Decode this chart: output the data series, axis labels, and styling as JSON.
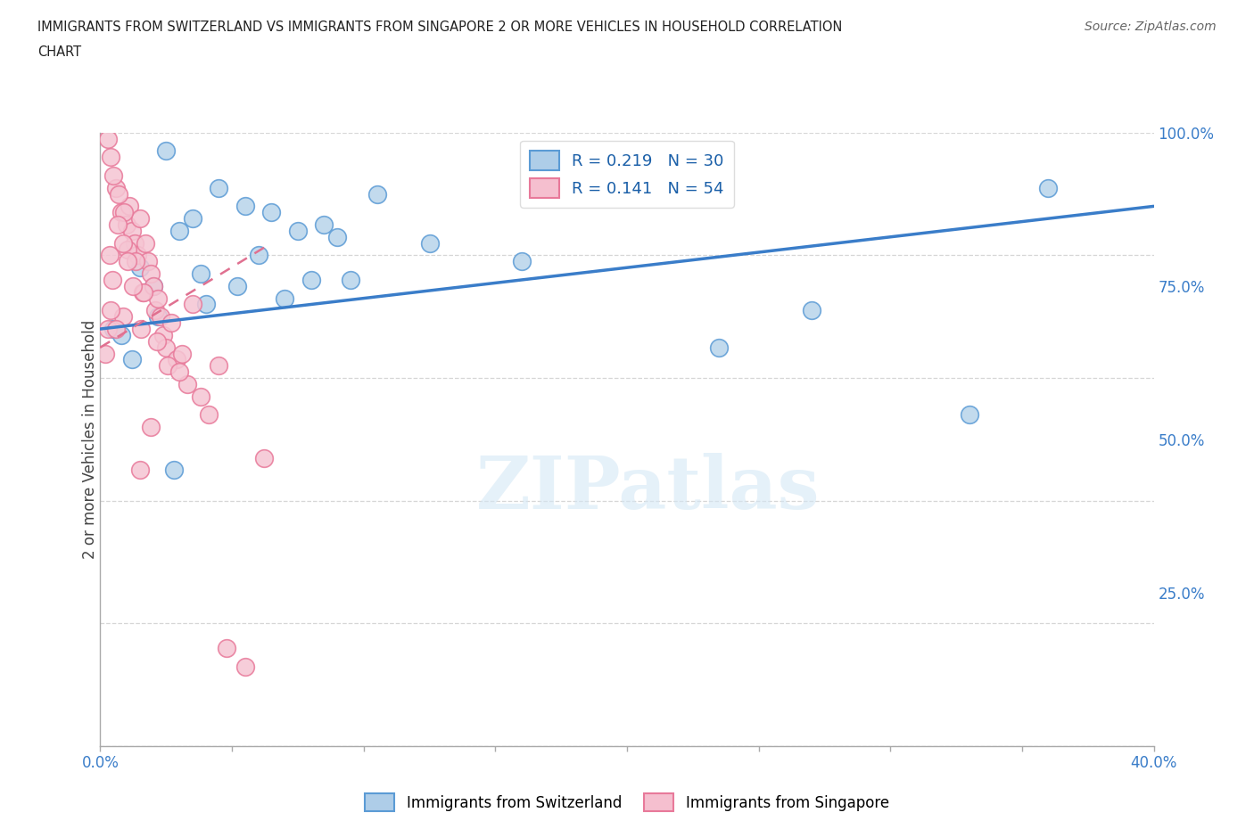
{
  "title_line1": "IMMIGRANTS FROM SWITZERLAND VS IMMIGRANTS FROM SINGAPORE 2 OR MORE VEHICLES IN HOUSEHOLD CORRELATION",
  "title_line2": "CHART",
  "source": "Source: ZipAtlas.com",
  "ylabel": "2 or more Vehicles in Household",
  "x_min": 0.0,
  "x_max": 40.0,
  "y_min": 0.0,
  "y_max": 100.0,
  "legend_blue_label_r": "R = 0.219",
  "legend_blue_label_n": "N = 30",
  "legend_pink_label_r": "R = 0.141",
  "legend_pink_label_n": "N = 54",
  "legend_blue_face": "#aecde8",
  "legend_pink_face": "#f5bfcf",
  "blue_edge_color": "#5b9bd5",
  "pink_edge_color": "#e8799a",
  "blue_scatter_color": "#b8d4ea",
  "pink_scatter_color": "#f5c5d3",
  "blue_line_color": "#3a7dc9",
  "pink_line_color": "#e07090",
  "grid_color": "#cccccc",
  "background_color": "#ffffff",
  "watermark": "ZIPatlas",
  "blue_scatter_x": [
    2.5,
    4.5,
    3.0,
    6.5,
    8.5,
    9.0,
    10.5,
    3.5,
    1.5,
    2.0,
    4.0,
    6.0,
    7.5,
    12.5,
    16.0,
    8.0,
    5.5,
    0.5,
    2.2,
    3.8,
    5.2,
    7.0,
    9.5,
    0.8,
    1.2,
    2.8,
    23.5,
    33.0,
    36.0,
    27.0
  ],
  "blue_scatter_y": [
    97,
    91,
    84,
    87,
    85,
    83,
    90,
    86,
    78,
    75,
    72,
    80,
    84,
    82,
    79,
    76,
    88,
    68,
    70,
    77,
    75,
    73,
    76,
    67,
    63,
    45,
    65,
    54,
    91,
    71
  ],
  "pink_scatter_x": [
    0.3,
    0.4,
    0.6,
    0.8,
    1.0,
    1.1,
    1.2,
    1.3,
    1.4,
    1.5,
    1.6,
    1.7,
    1.8,
    1.9,
    2.0,
    2.1,
    2.2,
    2.3,
    2.4,
    2.5,
    2.7,
    2.9,
    3.1,
    3.3,
    3.5,
    3.8,
    4.1,
    4.5,
    0.5,
    0.7,
    0.9,
    1.05,
    1.35,
    1.65,
    0.85,
    1.55,
    2.15,
    2.55,
    3.0,
    0.35,
    0.45,
    0.65,
    0.85,
    1.05,
    1.25,
    0.28,
    0.18,
    0.38,
    0.58,
    4.8,
    5.5,
    6.2,
    1.5,
    1.9
  ],
  "pink_scatter_y": [
    99,
    96,
    91,
    87,
    85,
    88,
    84,
    82,
    80,
    86,
    74,
    82,
    79,
    77,
    75,
    71,
    73,
    70,
    67,
    65,
    69,
    63,
    64,
    59,
    72,
    57,
    54,
    62,
    93,
    90,
    87,
    81,
    79,
    74,
    70,
    68,
    66,
    62,
    61,
    80,
    76,
    85,
    82,
    79,
    75,
    68,
    64,
    71,
    68,
    16,
    13,
    47,
    45,
    52
  ],
  "blue_trend_x": [
    0.0,
    40.0
  ],
  "blue_trend_y": [
    68.0,
    88.0
  ],
  "pink_trend_x": [
    0.0,
    6.5
  ],
  "pink_trend_y": [
    65.0,
    82.0
  ]
}
